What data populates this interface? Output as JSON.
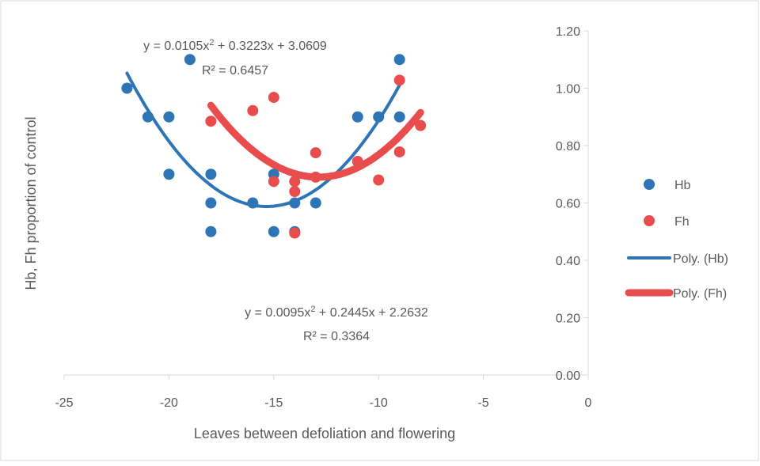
{
  "chart_data": {
    "type": "scatter",
    "title": "",
    "xlabel": "Leaves between defoliation and flowering",
    "ylabel": "Hb, Fh proportion of control",
    "xlim": [
      -25,
      0
    ],
    "ylim": [
      0.0,
      1.2
    ],
    "x_ticks": [
      "-25",
      "-20",
      "-15",
      "-10",
      "-5",
      "0"
    ],
    "y_ticks": [
      "0.00",
      "0.20",
      "0.40",
      "0.60",
      "0.80",
      "1.00",
      "1.20"
    ],
    "x_axis_crosses_at_y": 0.0,
    "y_axis_position": "right (x = 0)",
    "grid": false,
    "legend_position": "right",
    "series": [
      {
        "name": "Hb",
        "kind": "points",
        "color": "#2e75b6",
        "x": [
          -22,
          -21,
          -20,
          -20,
          -19,
          -18,
          -18,
          -18,
          -16,
          -15,
          -15,
          -14,
          -14,
          -13,
          -11,
          -10,
          -9,
          -9
        ],
        "y": [
          1.0,
          0.9,
          0.9,
          0.7,
          1.1,
          0.7,
          0.6,
          0.5,
          0.6,
          0.7,
          0.5,
          0.6,
          0.5,
          0.6,
          0.9,
          0.9,
          1.1,
          0.9
        ]
      },
      {
        "name": "Fh",
        "kind": "points",
        "color": "#e84c4c",
        "x": [
          -18,
          -16,
          -15,
          -15,
          -14,
          -14,
          -14,
          -13,
          -13,
          -11,
          -10,
          -9,
          -9,
          -8
        ],
        "y": [
          0.885,
          0.922,
          0.968,
          0.675,
          0.675,
          0.64,
          0.495,
          0.775,
          0.69,
          0.745,
          0.68,
          1.028,
          0.778,
          0.87
        ]
      },
      {
        "name": "Poly. (Hb)",
        "kind": "trendline",
        "color": "#2e75b6",
        "coefficients": [
          0.0105,
          0.3223,
          3.0609
        ],
        "x_range": [
          -22,
          -9
        ]
      },
      {
        "name": "Poly. (Fh)",
        "kind": "trendline",
        "color": "#e84c4c",
        "coefficients": [
          0.0095,
          0.2445,
          2.2632
        ],
        "x_range": [
          -18,
          -8
        ]
      }
    ],
    "annotations": [
      {
        "series": "Hb",
        "equation_pre": "y = 0.0105x",
        "equation_sup": "2",
        "equation_post": " + 0.3223x + 3.0609",
        "r2": "R² = 0.6457"
      },
      {
        "series": "Fh",
        "equation_pre": "y = 0.0095x",
        "equation_sup": "2",
        "equation_post": " + 0.2445x + 2.2632",
        "r2": "R² = 0.3364"
      }
    ]
  }
}
